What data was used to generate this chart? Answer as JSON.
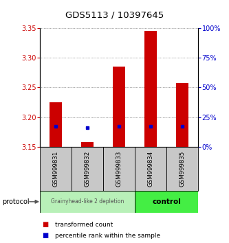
{
  "title": "GDS5113 / 10397645",
  "samples": [
    "GSM999831",
    "GSM999832",
    "GSM999833",
    "GSM999834",
    "GSM999835"
  ],
  "bar_bottoms": [
    3.15,
    3.15,
    3.15,
    3.15,
    3.15
  ],
  "bar_tops": [
    3.225,
    3.158,
    3.285,
    3.345,
    3.258
  ],
  "percentile_values": [
    3.185,
    3.183,
    3.185,
    3.185,
    3.185
  ],
  "ylim_left": [
    3.15,
    3.35
  ],
  "ylim_right": [
    0,
    100
  ],
  "yticks_left": [
    3.15,
    3.2,
    3.25,
    3.3,
    3.35
  ],
  "yticks_right": [
    0,
    25,
    50,
    75,
    100
  ],
  "bar_color": "#cc0000",
  "percentile_color": "#0000cc",
  "group1_label": "Grainyhead-like 2 depletion",
  "group2_label": "control",
  "group1_color": "#b8f0b8",
  "group2_color": "#44ee44",
  "protocol_label": "protocol",
  "legend_red": "transformed count",
  "legend_blue": "percentile rank within the sample",
  "bg_color": "#ffffff",
  "tick_label_color_left": "#cc0000",
  "tick_label_color_right": "#0000cc",
  "xlabel_area_bg": "#c8c8c8",
  "bar_width": 0.4
}
